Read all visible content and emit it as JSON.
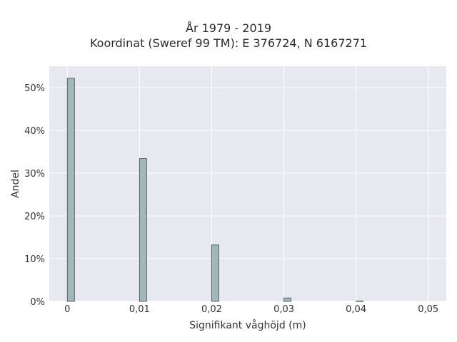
{
  "chart_data": {
    "type": "bar",
    "title": "År 1979 - 2019",
    "subtitle": "Koordinat (Sweref 99 TM): E 376724, N 6167271",
    "xlabel": "Signifikant våghöjd (m)",
    "ylabel": "Andel",
    "x_tick_labels": [
      "0",
      "0,01",
      "0,02",
      "0,03",
      "0,04",
      "0,05"
    ],
    "y_tick_labels": [
      "0%",
      "10%",
      "20%",
      "30%",
      "40%",
      "50%"
    ],
    "xlim": [
      -0.0025,
      0.0525
    ],
    "ylim": [
      0,
      55
    ],
    "grid": true,
    "x": [
      0,
      0.01,
      0.02,
      0.03,
      0.04
    ],
    "values": [
      52.2,
      33.4,
      13.2,
      0.8,
      0.1
    ],
    "bar_color": "#a2b8b8",
    "bar_edge_color": "#3b4a4a",
    "plot_background": "#e8e8f1"
  }
}
